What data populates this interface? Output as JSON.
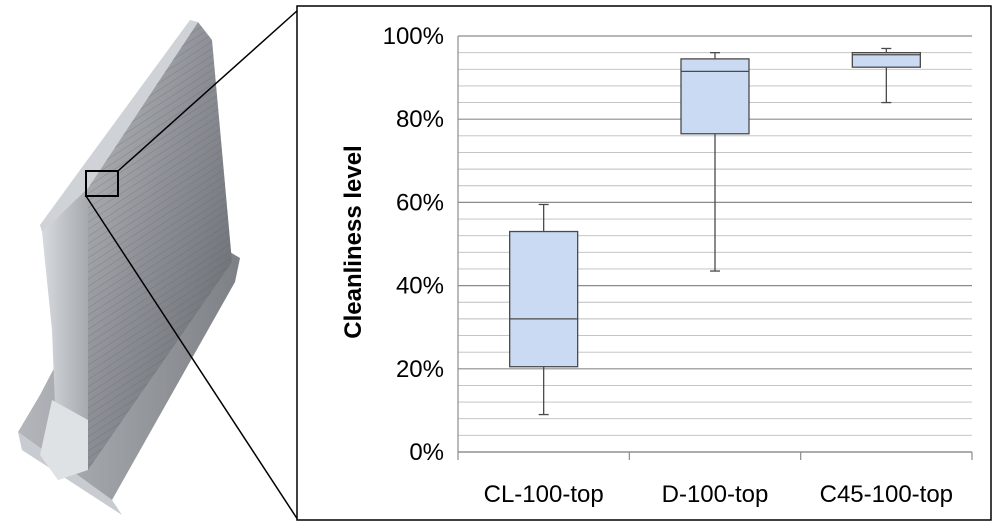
{
  "photo": {
    "subject": "aluminium-t-profile-specimen"
  },
  "chart_data": {
    "type": "box",
    "title": "",
    "ylabel": "Cleanliness level",
    "xlabel": "",
    "ylim": [
      0,
      100
    ],
    "ytick_step": 20,
    "minor_gridline_step": 4,
    "ytick_labels": [
      "0%",
      "20%",
      "40%",
      "60%",
      "80%",
      "100%"
    ],
    "categories": [
      "CL-100-top",
      "D-100-top",
      "C45-100-top"
    ],
    "boxes": [
      {
        "category": "CL-100-top",
        "min": 9,
        "q1": 20.5,
        "median": 32,
        "q3": 53,
        "max": 59.5
      },
      {
        "category": "D-100-top",
        "min": 43.5,
        "q1": 76.5,
        "median": 91.5,
        "q3": 94.5,
        "max": 96
      },
      {
        "category": "C45-100-top",
        "min": 84,
        "q1": 92.5,
        "median": 95.5,
        "q3": 96,
        "max": 97
      }
    ],
    "grid": true,
    "legend": "none",
    "box_fill": "#c9daf2",
    "box_stroke": "#4a4a4a"
  }
}
